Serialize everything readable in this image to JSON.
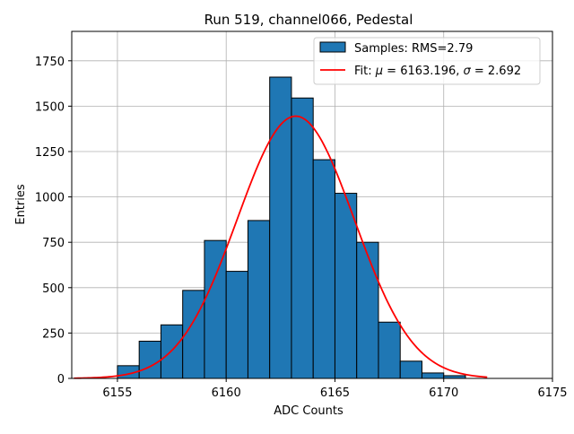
{
  "chart_data": {
    "type": "bar",
    "title": "Run 519, channel066, Pedestal",
    "xlabel": "ADC Counts",
    "ylabel": "Entries",
    "xlim": [
      6152.9,
      6175
    ],
    "ylim": [
      0,
      1912
    ],
    "grid": true,
    "legend_position": "top-right",
    "xticks": [
      6155,
      6160,
      6165,
      6170,
      6175
    ],
    "yticks": [
      0,
      250,
      500,
      750,
      1000,
      1250,
      1500,
      1750
    ],
    "bin_edges": [
      6155,
      6156,
      6157,
      6158,
      6159,
      6160,
      6161,
      6162,
      6163,
      6164,
      6165,
      6166,
      6167,
      6168,
      6169,
      6170,
      6171
    ],
    "counts": [
      70,
      205,
      295,
      485,
      760,
      590,
      870,
      1660,
      1545,
      1205,
      1020,
      750,
      310,
      95,
      30,
      15
    ],
    "histogram_color": "#1f77b4",
    "histogram_edge_color": "#000000",
    "fit": {
      "mu": 6163.196,
      "sigma": 2.692,
      "amplitude": 1445,
      "x_range": [
        6153,
        6172
      ],
      "color": "#ff0000"
    },
    "legend": {
      "samples_label": "Samples: RMS=2.79",
      "fit_label_prefix": "Fit: ",
      "fit_mu_symbol": "μ",
      "fit_mu_text": " = 6163.196, ",
      "fit_sigma_symbol": "σ",
      "fit_sigma_text": " = 2.692"
    }
  }
}
